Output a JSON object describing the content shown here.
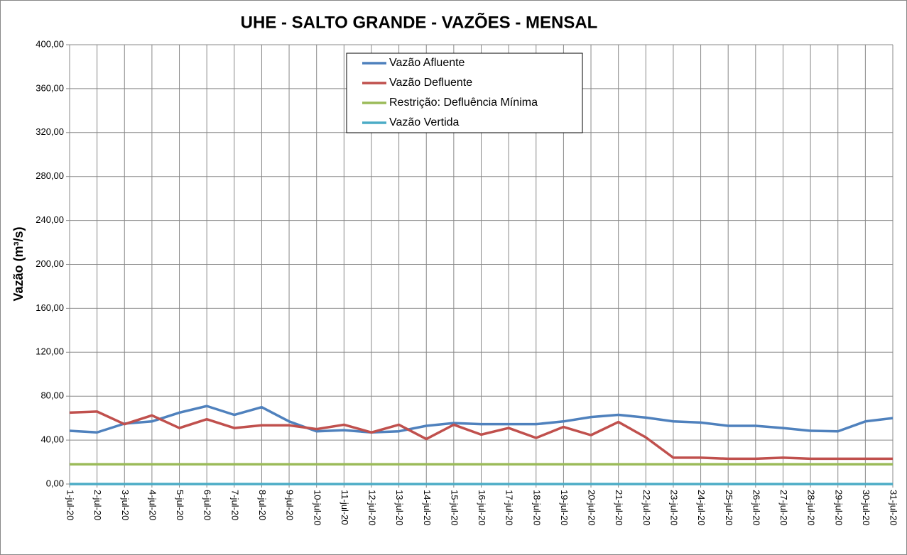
{
  "chart_data": {
    "type": "line",
    "title": "UHE - SALTO GRANDE - VAZÕES - MENSAL",
    "y_label": "Vazão (m³/s)",
    "categories": [
      "1-jul-20",
      "2-jul-20",
      "3-jul-20",
      "4-jul-20",
      "5-jul-20",
      "6-jul-20",
      "7-jul-20",
      "8-jul-20",
      "9-jul-20",
      "10-jul-20",
      "11-jul-20",
      "12-jul-20",
      "13-jul-20",
      "14-jul-20",
      "15-jul-20",
      "16-jul-20",
      "17-jul-20",
      "18-jul-20",
      "19-jul-20",
      "20-jul-20",
      "21-jul-20",
      "22-jul-20",
      "23-jul-20",
      "24-jul-20",
      "25-jul-20",
      "26-jul-20",
      "27-jul-20",
      "28-jul-20",
      "29-jul-20",
      "30-jul-20",
      "31-jul-20"
    ],
    "series": [
      {
        "name": "Vazão Afluente",
        "color": "#4f81bd",
        "values": [
          48.5,
          47,
          55,
          57,
          65,
          71,
          63,
          70,
          57,
          48,
          49,
          47,
          48,
          53,
          55.5,
          54.5,
          54.5,
          54.5,
          57,
          61,
          63,
          60.5,
          57,
          56,
          53,
          53,
          51,
          48.5,
          48,
          57,
          60
        ]
      },
      {
        "name": "Vazão Defluente",
        "color": "#c0504d",
        "values": [
          65,
          66,
          54.5,
          62.5,
          51,
          59,
          51,
          53.5,
          53.5,
          50,
          54,
          47,
          54,
          41,
          54,
          45,
          51,
          42,
          52,
          44.5,
          56.5,
          42.5,
          24,
          24,
          23,
          23,
          24,
          23,
          23,
          23,
          23
        ]
      },
      {
        "name": "Restrição: Defluência Mínima",
        "color": "#9bbb59",
        "values": [
          18,
          18,
          18,
          18,
          18,
          18,
          18,
          18,
          18,
          18,
          18,
          18,
          18,
          18,
          18,
          18,
          18,
          18,
          18,
          18,
          18,
          18,
          18,
          18,
          18,
          18,
          18,
          18,
          18,
          18,
          18
        ]
      },
      {
        "name": "Vazão Vertida",
        "color": "#4bacc6",
        "values": [
          0,
          0,
          0,
          0,
          0,
          0,
          0,
          0,
          0,
          0,
          0,
          0,
          0,
          0,
          0,
          0,
          0,
          0,
          0,
          0,
          0,
          0,
          0,
          0,
          0,
          0,
          0,
          0,
          0,
          0,
          0
        ]
      }
    ],
    "ylim": [
      0,
      400
    ],
    "yticks": [
      {
        "value": 0,
        "label": "0,00"
      },
      {
        "value": 40,
        "label": "40,00"
      },
      {
        "value": 80,
        "label": "80,00"
      },
      {
        "value": 120,
        "label": "120,00"
      },
      {
        "value": 160,
        "label": "160,00"
      },
      {
        "value": 200,
        "label": "200,00"
      },
      {
        "value": 240,
        "label": "240,00"
      },
      {
        "value": 280,
        "label": "280,00"
      },
      {
        "value": 320,
        "label": "320,00"
      },
      {
        "value": 360,
        "label": "360,00"
      },
      {
        "value": 400,
        "label": "400,00"
      }
    ],
    "grid": true,
    "legend": "top"
  }
}
